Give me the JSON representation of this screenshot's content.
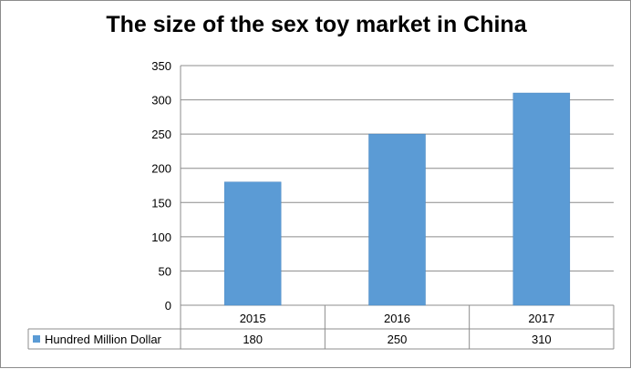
{
  "chart_data": {
    "type": "bar",
    "title": "The size of the sex toy market in China",
    "categories": [
      "2015",
      "2016",
      "2017"
    ],
    "series": [
      {
        "name": "Hundred Million Dollar",
        "values": [
          180,
          250,
          310
        ],
        "color": "#5b9bd5"
      }
    ],
    "ylim": [
      0,
      350
    ],
    "yticks": [
      0,
      50,
      100,
      150,
      200,
      250,
      300,
      350
    ],
    "grid": true,
    "legend": "data-table",
    "data_table": true
  }
}
